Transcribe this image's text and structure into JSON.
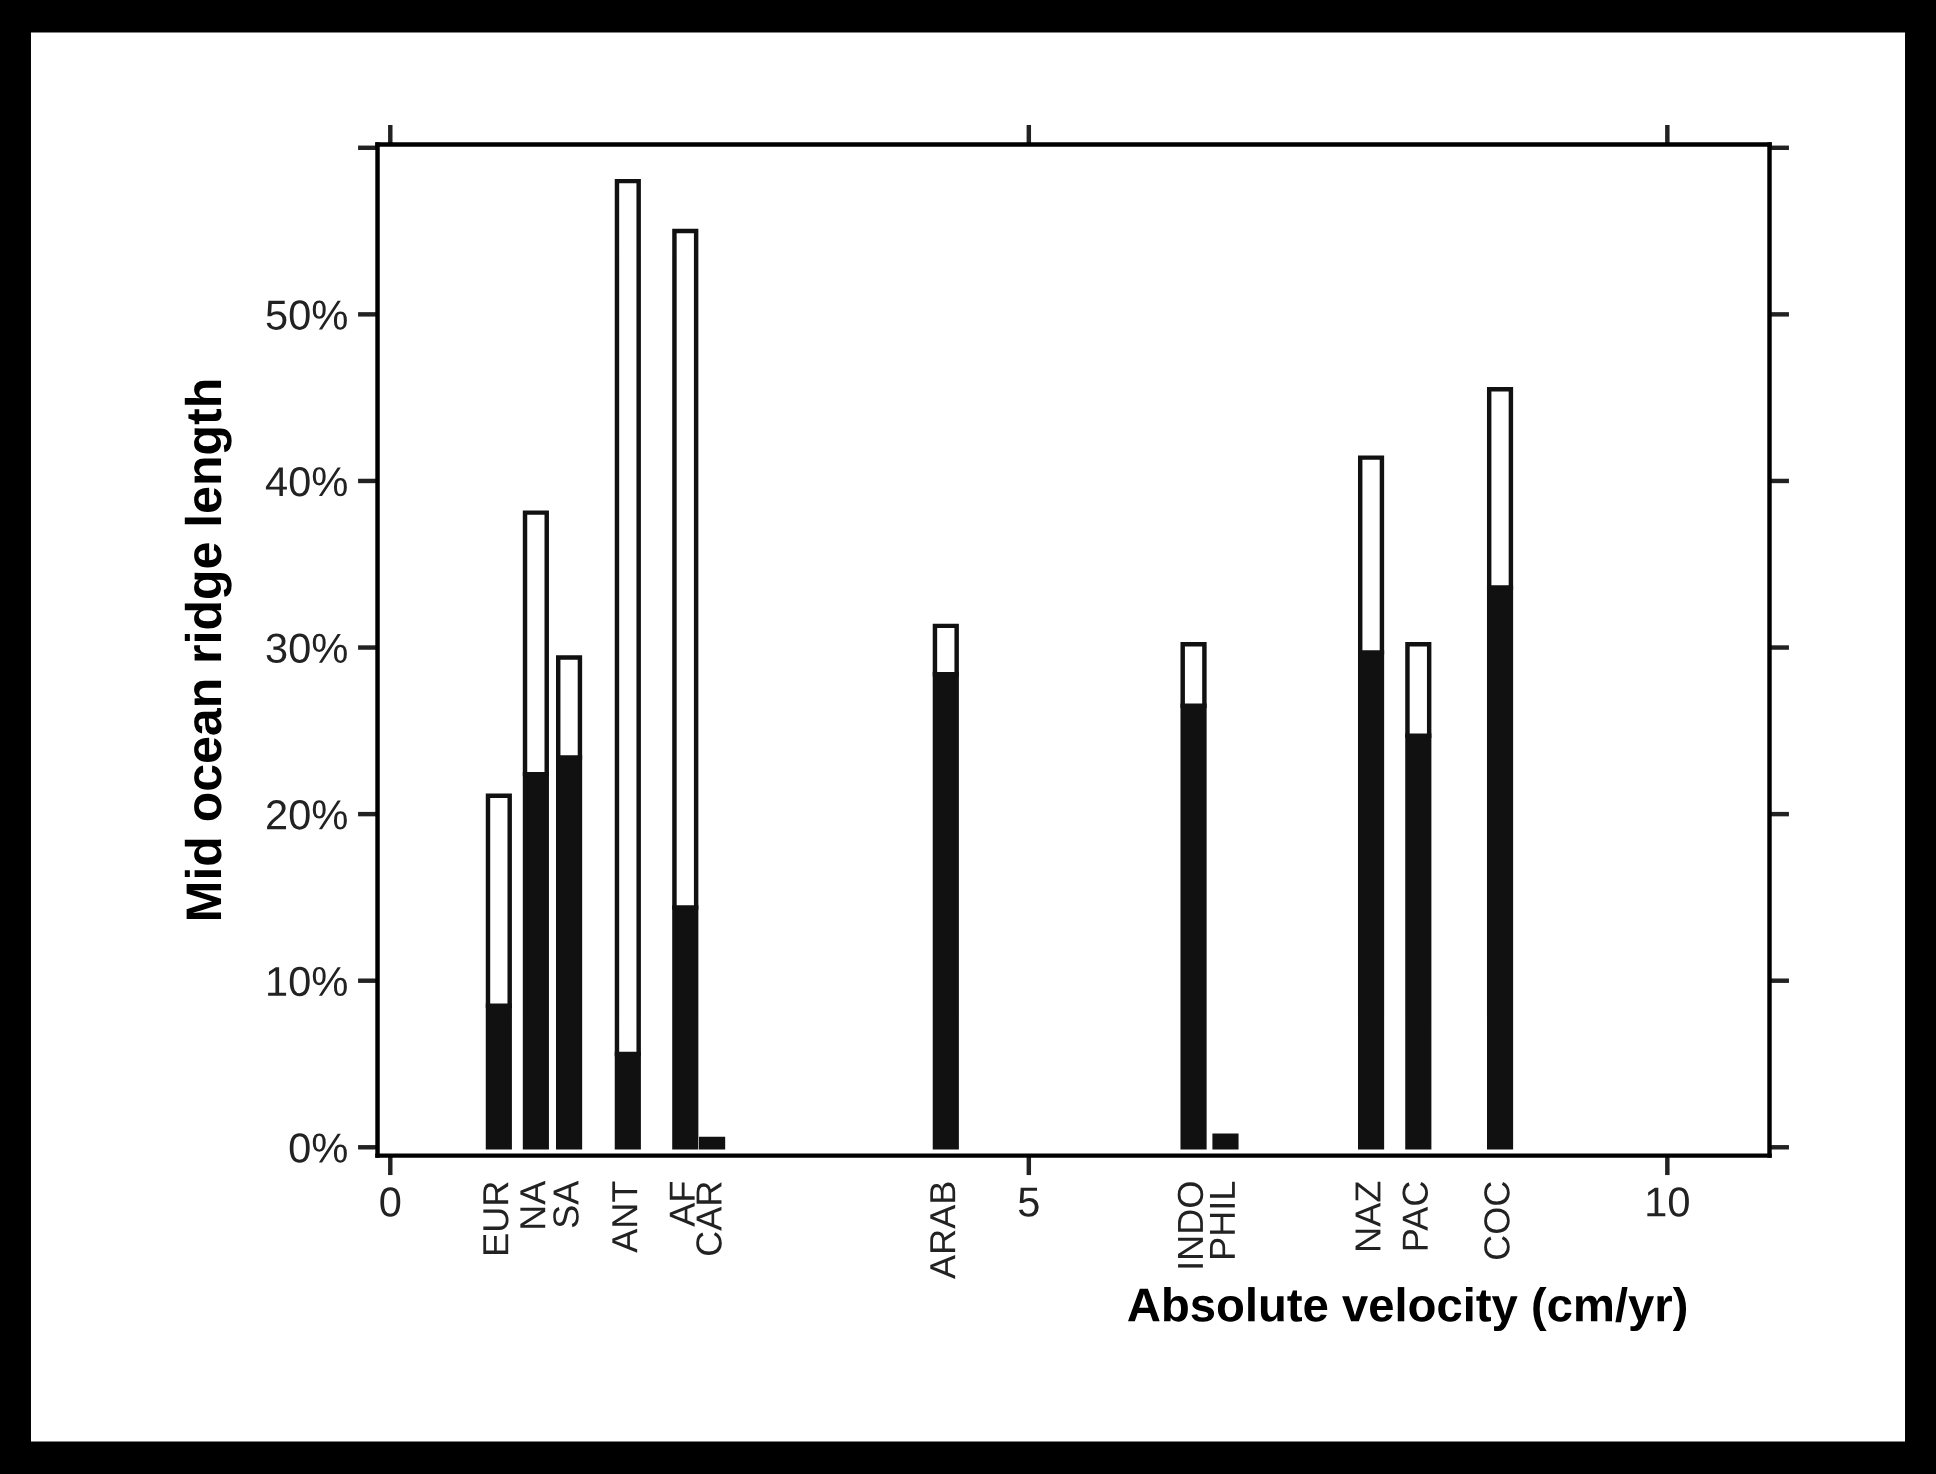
{
  "chart_data": {
    "type": "bar",
    "stacked": true,
    "xlabel": "Absolute velocity (cm/yr)",
    "ylabel": "Mid ocean ridge length",
    "x": [
      0.85,
      1.14,
      1.4,
      1.86,
      2.31,
      2.52,
      4.35,
      6.29,
      6.54,
      7.68,
      8.05,
      8.69
    ],
    "series": [
      {
        "color": "#111111",
        "values": [
          8.5,
          22.4,
          23.4,
          5.6,
          14.4,
          0.5,
          28.4,
          26.5,
          0.7,
          29.7,
          24.7,
          33.6
        ]
      },
      {
        "color": "#ffffff",
        "values": [
          12.6,
          15.7,
          6.0,
          52.4,
          40.6,
          null,
          2.9,
          3.7,
          null,
          11.7,
          5.5,
          11.9
        ]
      }
    ],
    "xlim": [
      -0.1,
      10.8
    ],
    "xticks": [
      0,
      5,
      10
    ],
    "annotations": [
      {
        "text": "EUR",
        "x": 0.85,
        "y": 0
      },
      {
        "text": "NA",
        "x": 1.14,
        "y": 0
      },
      {
        "text": "SA",
        "x": 1.4,
        "y": 0
      },
      {
        "text": "ANT",
        "x": 1.86,
        "y": 0
      },
      {
        "text": "AF",
        "x": 2.31,
        "y": 0
      },
      {
        "text": "CAR",
        "x": 2.52,
        "y": 0
      },
      {
        "text": "ARAB",
        "x": 4.35,
        "y": 0
      },
      {
        "text": "INDO",
        "x": 6.29,
        "y": 0
      },
      {
        "text": "PHIL",
        "x": 6.54,
        "y": 0
      },
      {
        "text": "NAZ",
        "x": 7.68,
        "y": 0
      },
      {
        "text": "PAC",
        "x": 8.05,
        "y": 0
      },
      {
        "text": "COC",
        "x": 8.69,
        "y": 0
      }
    ],
    "ylim": [
      -0.5,
      60.2
    ],
    "yticks": [
      {
        "value": 0,
        "label": "0%"
      },
      {
        "value": 10,
        "label": "10%"
      },
      {
        "value": 20,
        "label": "20%"
      },
      {
        "value": 30,
        "label": "30%"
      },
      {
        "value": 40,
        "label": "40%"
      },
      {
        "value": 50,
        "label": "50%"
      },
      {
        "value": 60,
        "label": null
      }
    ],
    "grid": false,
    "legend": false
  }
}
